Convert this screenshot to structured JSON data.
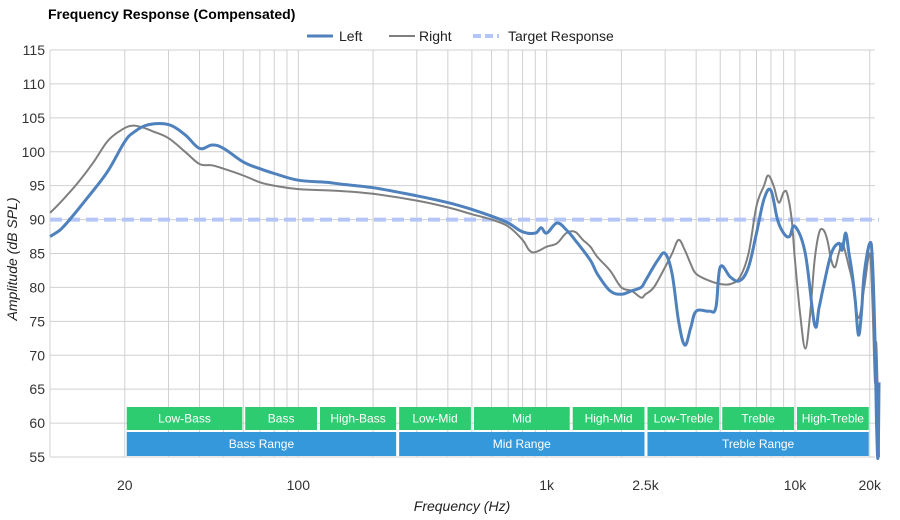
{
  "chart_data": {
    "type": "line",
    "title": "Frequency Response (Compensated)",
    "xlabel": "Frequency (Hz)",
    "ylabel": "Amplitude (dB SPL)",
    "x_scale": "log",
    "xlim": [
      10,
      21000
    ],
    "ylim": [
      55,
      115
    ],
    "grid": true,
    "legend_position": "top-center",
    "y_ticks": [
      55,
      60,
      65,
      70,
      75,
      80,
      85,
      90,
      95,
      100,
      105,
      110,
      115
    ],
    "x_ticks": [
      {
        "value": 20,
        "label": "20"
      },
      {
        "value": 100,
        "label": "100"
      },
      {
        "value": 1000,
        "label": "1k"
      },
      {
        "value": 2500,
        "label": "2.5k"
      },
      {
        "value": 10000,
        "label": "10k"
      },
      {
        "value": 20000,
        "label": "20k"
      }
    ],
    "series": [
      {
        "name": "Left",
        "color": "#4f81bd",
        "style": "solid",
        "points": [
          [
            10,
            87.5
          ],
          [
            11,
            88.5
          ],
          [
            12,
            90
          ],
          [
            14,
            93
          ],
          [
            17,
            97
          ],
          [
            20,
            101.5
          ],
          [
            22,
            103
          ],
          [
            25,
            104
          ],
          [
            30,
            104
          ],
          [
            35,
            102.5
          ],
          [
            40,
            100.5
          ],
          [
            45,
            101
          ],
          [
            50,
            100.5
          ],
          [
            60,
            98.5
          ],
          [
            70,
            97.5
          ],
          [
            80,
            96.8
          ],
          [
            100,
            95.8
          ],
          [
            130,
            95.5
          ],
          [
            150,
            95.2
          ],
          [
            200,
            94.7
          ],
          [
            300,
            93.5
          ],
          [
            400,
            92.5
          ],
          [
            500,
            91.5
          ],
          [
            600,
            90.5
          ],
          [
            700,
            89.5
          ],
          [
            800,
            88.2
          ],
          [
            900,
            88
          ],
          [
            950,
            88.8
          ],
          [
            1000,
            88
          ],
          [
            1100,
            89.5
          ],
          [
            1200,
            88.5
          ],
          [
            1300,
            87
          ],
          [
            1500,
            84
          ],
          [
            1600,
            82
          ],
          [
            1800,
            79.5
          ],
          [
            2000,
            79
          ],
          [
            2200,
            79.5
          ],
          [
            2400,
            80
          ],
          [
            2500,
            81
          ],
          [
            2800,
            84
          ],
          [
            3000,
            85
          ],
          [
            3200,
            82
          ],
          [
            3400,
            75
          ],
          [
            3600,
            71.5
          ],
          [
            3800,
            74
          ],
          [
            4000,
            76.5
          ],
          [
            4500,
            76.5
          ],
          [
            4800,
            77
          ],
          [
            5000,
            83
          ],
          [
            5500,
            81.5
          ],
          [
            6000,
            81
          ],
          [
            6500,
            83
          ],
          [
            7000,
            88
          ],
          [
            7500,
            93
          ],
          [
            8000,
            94.3
          ],
          [
            8500,
            90
          ],
          [
            9000,
            88
          ],
          [
            9500,
            87.5
          ],
          [
            10000,
            89
          ],
          [
            11000,
            85
          ],
          [
            12000,
            74.5
          ],
          [
            12500,
            77
          ],
          [
            13000,
            80
          ],
          [
            14000,
            85
          ],
          [
            15000,
            86.5
          ],
          [
            15500,
            85.5
          ],
          [
            16000,
            88
          ],
          [
            16500,
            85
          ],
          [
            17000,
            82
          ],
          [
            17500,
            78
          ],
          [
            18000,
            73
          ],
          [
            18500,
            76
          ],
          [
            19000,
            82
          ],
          [
            20000,
            86.5
          ],
          [
            20500,
            84
          ],
          [
            21000,
            72
          ],
          [
            21300,
            60
          ],
          [
            21600,
            55
          ],
          [
            21800,
            66
          ]
        ]
      },
      {
        "name": "Right",
        "color": "#7f7f7f",
        "style": "solid",
        "points": [
          [
            10,
            91
          ],
          [
            11,
            92.5
          ],
          [
            13,
            95.5
          ],
          [
            15,
            98.5
          ],
          [
            17,
            101.5
          ],
          [
            19,
            103
          ],
          [
            21,
            103.8
          ],
          [
            23,
            103.7
          ],
          [
            26,
            103
          ],
          [
            30,
            102
          ],
          [
            35,
            100
          ],
          [
            40,
            98.2
          ],
          [
            45,
            98
          ],
          [
            50,
            97.5
          ],
          [
            60,
            96.5
          ],
          [
            70,
            95.5
          ],
          [
            80,
            95
          ],
          [
            100,
            94.5
          ],
          [
            150,
            94.2
          ],
          [
            200,
            93.8
          ],
          [
            300,
            92.8
          ],
          [
            400,
            91.8
          ],
          [
            500,
            90.8
          ],
          [
            600,
            90
          ],
          [
            700,
            89
          ],
          [
            800,
            87
          ],
          [
            850,
            85.5
          ],
          [
            900,
            85.2
          ],
          [
            1000,
            86
          ],
          [
            1100,
            86.5
          ],
          [
            1200,
            88
          ],
          [
            1300,
            88.2
          ],
          [
            1400,
            87
          ],
          [
            1500,
            86
          ],
          [
            1600,
            84.5
          ],
          [
            1800,
            82.5
          ],
          [
            2000,
            80
          ],
          [
            2200,
            79.5
          ],
          [
            2400,
            78.5
          ],
          [
            2500,
            79
          ],
          [
            2700,
            80
          ],
          [
            3000,
            83
          ],
          [
            3200,
            85
          ],
          [
            3400,
            87
          ],
          [
            3600,
            85.5
          ],
          [
            3800,
            83.5
          ],
          [
            4000,
            82
          ],
          [
            4500,
            81
          ],
          [
            5000,
            80.5
          ],
          [
            5500,
            80.5
          ],
          [
            6000,
            81.5
          ],
          [
            6500,
            85
          ],
          [
            7000,
            92
          ],
          [
            7500,
            95
          ],
          [
            7800,
            96.5
          ],
          [
            8200,
            95
          ],
          [
            8600,
            92.5
          ],
          [
            9000,
            94
          ],
          [
            9300,
            93.8
          ],
          [
            9700,
            90
          ],
          [
            10000,
            84
          ],
          [
            10500,
            76
          ],
          [
            11000,
            71
          ],
          [
            11500,
            76
          ],
          [
            12000,
            84
          ],
          [
            12500,
            88
          ],
          [
            13000,
            88.5
          ],
          [
            13500,
            87
          ],
          [
            14000,
            84
          ],
          [
            14500,
            83
          ],
          [
            15000,
            85
          ],
          [
            15500,
            86.5
          ],
          [
            16000,
            85
          ],
          [
            16500,
            83
          ],
          [
            17000,
            81
          ],
          [
            18000,
            75.5
          ],
          [
            19000,
            80
          ],
          [
            20000,
            85
          ],
          [
            20500,
            78
          ],
          [
            21000,
            66
          ],
          [
            21200,
            72
          ],
          [
            21500,
            66
          ],
          [
            21800,
            55
          ]
        ]
      },
      {
        "name": "Target Response",
        "color": "#b3c6f7",
        "style": "dashed",
        "points": [
          [
            10,
            90
          ],
          [
            21800,
            90
          ]
        ]
      }
    ],
    "band_rows": [
      {
        "color": "#2ecc71",
        "bands": [
          {
            "label": "Low-Bass",
            "from": 20,
            "to": 60
          },
          {
            "label": "Bass",
            "from": 60,
            "to": 120
          },
          {
            "label": "High-Bass",
            "from": 120,
            "to": 250
          },
          {
            "label": "Low-Mid",
            "from": 250,
            "to": 500
          },
          {
            "label": "Mid",
            "from": 500,
            "to": 1250
          },
          {
            "label": "High-Mid",
            "from": 1250,
            "to": 2500
          },
          {
            "label": "Low-Treble",
            "from": 2500,
            "to": 5000
          },
          {
            "label": "Treble",
            "from": 5000,
            "to": 10000
          },
          {
            "label": "High-Treble",
            "from": 10000,
            "to": 20000
          }
        ]
      },
      {
        "color": "#3498db",
        "bands": [
          {
            "label": "Bass Range",
            "from": 20,
            "to": 250
          },
          {
            "label": "Mid Range",
            "from": 250,
            "to": 2500
          },
          {
            "label": "Treble Range",
            "from": 2500,
            "to": 20000
          }
        ]
      }
    ]
  }
}
